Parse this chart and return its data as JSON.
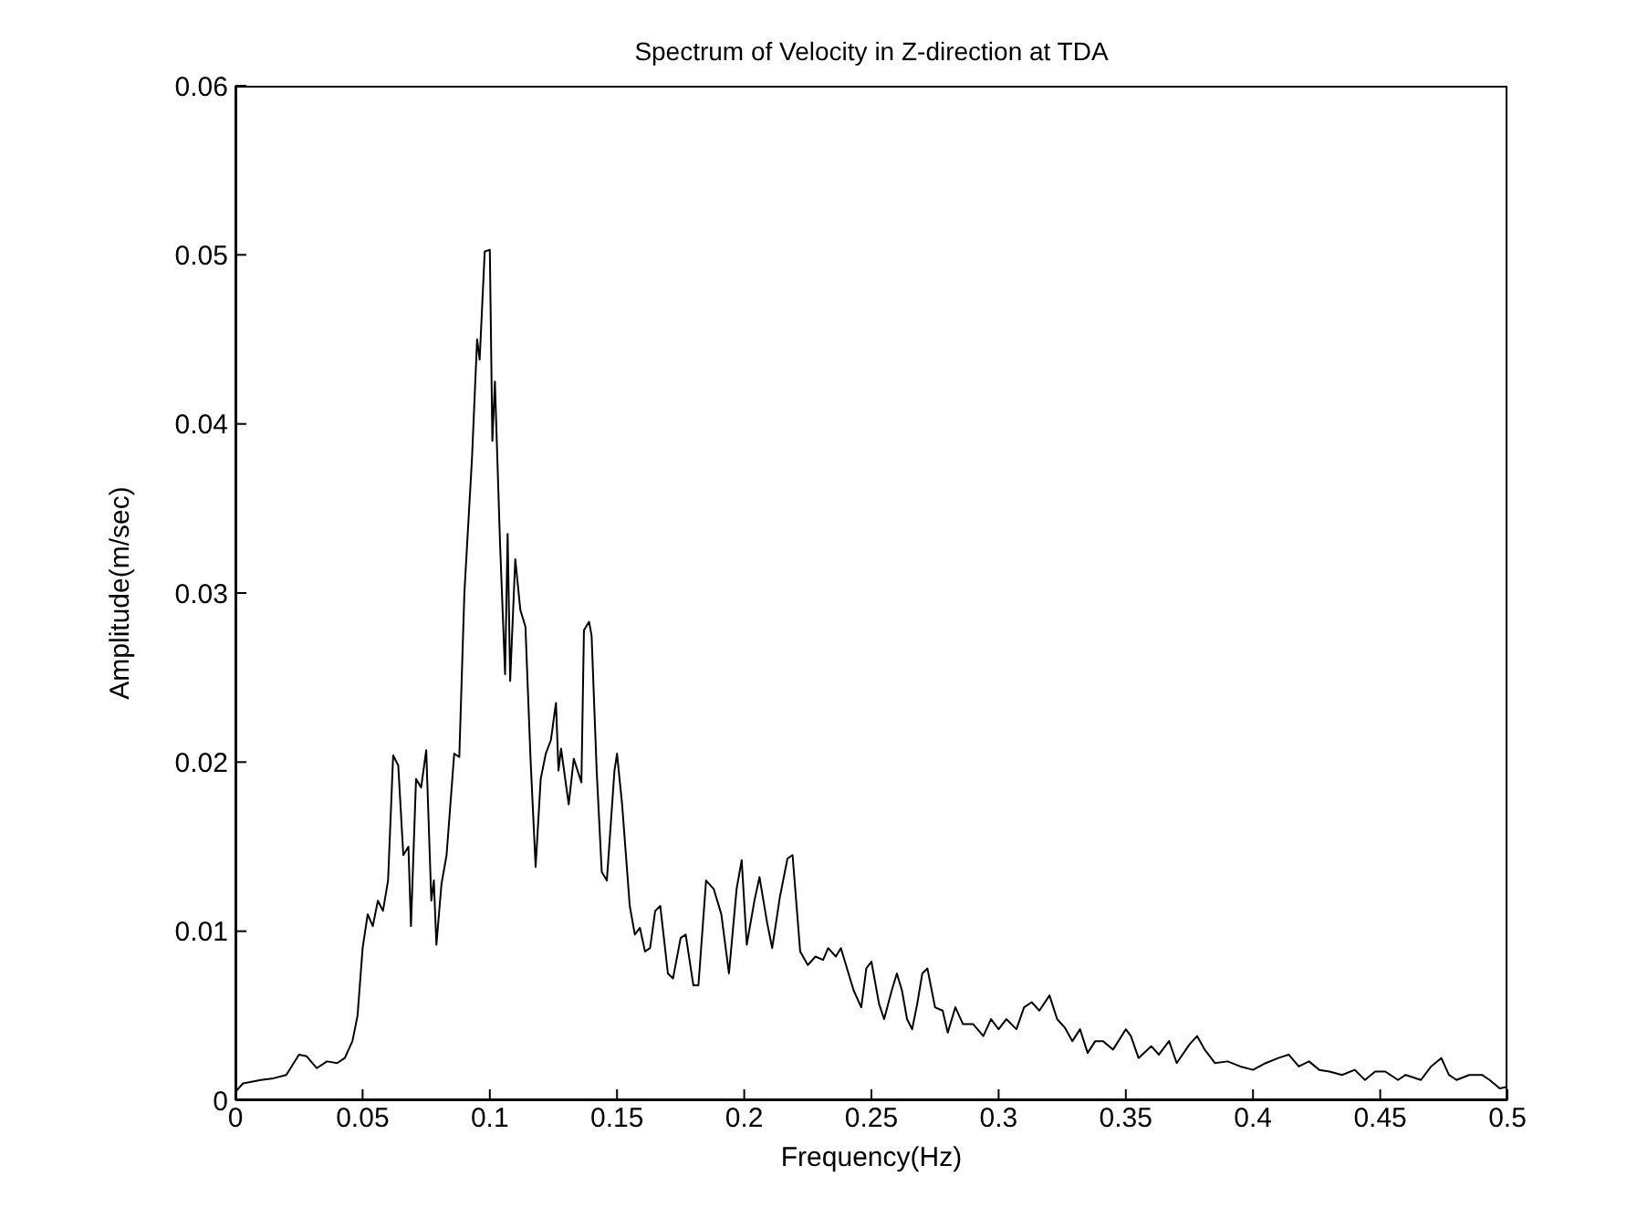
{
  "chart_data": {
    "type": "line",
    "title": "Spectrum of Velocity in Z-direction at TDA",
    "xlabel": "Frequency(Hz)",
    "ylabel": "Amplitude(m/sec)",
    "xlim": [
      0,
      0.5
    ],
    "xticks": [
      0,
      0.05,
      0.1,
      0.15,
      0.2,
      0.25,
      0.3,
      0.35,
      0.4,
      0.45,
      0.5
    ],
    "ylim": [
      0,
      0.06
    ],
    "yticks": [
      0,
      0.01,
      0.02,
      0.03,
      0.04,
      0.05,
      0.06
    ],
    "grid": false,
    "marker": "none",
    "line_style": "solid",
    "x": [
      0,
      0.003,
      0.01,
      0.015,
      0.02,
      0.025,
      0.028,
      0.032,
      0.036,
      0.04,
      0.043,
      0.046,
      0.048,
      0.05,
      0.052,
      0.054,
      0.056,
      0.058,
      0.06,
      0.062,
      0.064,
      0.066,
      0.068,
      0.069,
      0.071,
      0.073,
      0.075,
      0.077,
      0.078,
      0.079,
      0.081,
      0.083,
      0.086,
      0.088,
      0.09,
      0.093,
      0.095,
      0.096,
      0.098,
      0.1,
      0.101,
      0.102,
      0.104,
      0.106,
      0.107,
      0.108,
      0.11,
      0.112,
      0.114,
      0.116,
      0.118,
      0.12,
      0.122,
      0.124,
      0.126,
      0.127,
      0.128,
      0.131,
      0.133,
      0.136,
      0.137,
      0.139,
      0.14,
      0.142,
      0.144,
      0.146,
      0.149,
      0.15,
      0.152,
      0.155,
      0.157,
      0.159,
      0.161,
      0.163,
      0.165,
      0.167,
      0.17,
      0.172,
      0.175,
      0.177,
      0.18,
      0.182,
      0.185,
      0.188,
      0.191,
      0.194,
      0.197,
      0.199,
      0.201,
      0.204,
      0.206,
      0.209,
      0.211,
      0.214,
      0.217,
      0.219,
      0.222,
      0.225,
      0.228,
      0.231,
      0.233,
      0.236,
      0.238,
      0.241,
      0.243,
      0.246,
      0.248,
      0.25,
      0.253,
      0.255,
      0.258,
      0.26,
      0.262,
      0.264,
      0.266,
      0.268,
      0.27,
      0.272,
      0.275,
      0.278,
      0.28,
      0.283,
      0.286,
      0.29,
      0.294,
      0.297,
      0.3,
      0.303,
      0.307,
      0.31,
      0.313,
      0.316,
      0.32,
      0.323,
      0.326,
      0.329,
      0.332,
      0.335,
      0.338,
      0.341,
      0.345,
      0.35,
      0.352,
      0.355,
      0.36,
      0.363,
      0.367,
      0.37,
      0.375,
      0.378,
      0.381,
      0.385,
      0.39,
      0.395,
      0.4,
      0.405,
      0.41,
      0.414,
      0.418,
      0.422,
      0.426,
      0.43,
      0.435,
      0.44,
      0.444,
      0.448,
      0.452,
      0.457,
      0.46,
      0.466,
      0.47,
      0.474,
      0.477,
      0.48,
      0.485,
      0.49,
      0.493,
      0.497,
      0.5
    ],
    "series": [
      {
        "color": "#000000",
        "values": [
          0.0005,
          0.001,
          0.0012,
          0.0013,
          0.0015,
          0.0027,
          0.0026,
          0.0019,
          0.0023,
          0.0022,
          0.0025,
          0.0035,
          0.005,
          0.009,
          0.011,
          0.0103,
          0.0118,
          0.0112,
          0.013,
          0.0204,
          0.0198,
          0.0145,
          0.015,
          0.0103,
          0.019,
          0.0185,
          0.0207,
          0.0118,
          0.013,
          0.0092,
          0.0128,
          0.0145,
          0.0205,
          0.0203,
          0.03,
          0.038,
          0.045,
          0.0438,
          0.0502,
          0.0503,
          0.039,
          0.0425,
          0.033,
          0.0252,
          0.0335,
          0.0248,
          0.032,
          0.029,
          0.028,
          0.0202,
          0.0138,
          0.019,
          0.0205,
          0.0213,
          0.0235,
          0.0195,
          0.0208,
          0.0175,
          0.0202,
          0.0188,
          0.0278,
          0.0283,
          0.0275,
          0.0195,
          0.0135,
          0.013,
          0.0195,
          0.0205,
          0.0175,
          0.0115,
          0.0098,
          0.0102,
          0.0088,
          0.009,
          0.0112,
          0.0115,
          0.0075,
          0.0072,
          0.0096,
          0.0098,
          0.0068,
          0.0068,
          0.013,
          0.0125,
          0.011,
          0.0075,
          0.0125,
          0.0142,
          0.0092,
          0.0118,
          0.0132,
          0.0105,
          0.009,
          0.012,
          0.0143,
          0.0145,
          0.0088,
          0.008,
          0.0085,
          0.0083,
          0.009,
          0.0085,
          0.009,
          0.0075,
          0.0065,
          0.0055,
          0.0078,
          0.0082,
          0.0057,
          0.0048,
          0.0065,
          0.0075,
          0.0065,
          0.0048,
          0.0042,
          0.0057,
          0.0075,
          0.0078,
          0.0055,
          0.0053,
          0.004,
          0.0055,
          0.0045,
          0.0045,
          0.0038,
          0.0048,
          0.0042,
          0.0048,
          0.0042,
          0.0055,
          0.0058,
          0.0053,
          0.0062,
          0.0048,
          0.0043,
          0.0035,
          0.0042,
          0.0028,
          0.0035,
          0.0035,
          0.003,
          0.0042,
          0.0038,
          0.0025,
          0.0032,
          0.0027,
          0.0035,
          0.0022,
          0.0033,
          0.0038,
          0.003,
          0.0022,
          0.0023,
          0.002,
          0.0018,
          0.0022,
          0.0025,
          0.0027,
          0.002,
          0.0023,
          0.0018,
          0.0017,
          0.0015,
          0.0018,
          0.0012,
          0.0017,
          0.0017,
          0.0012,
          0.0015,
          0.0012,
          0.002,
          0.0025,
          0.0015,
          0.0012,
          0.0015,
          0.0015,
          0.0012,
          0.0007,
          0.0008
        ]
      }
    ]
  }
}
